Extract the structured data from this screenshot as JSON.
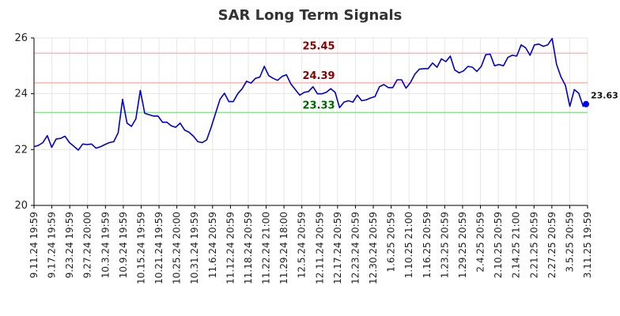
{
  "chart_data": {
    "type": "line",
    "title": "SAR Long Term Signals",
    "xlabel": "",
    "ylabel": "",
    "ylim": [
      20,
      26
    ],
    "yticks": [
      20,
      22,
      24,
      26
    ],
    "grid": true,
    "x_tick_labels": [
      "9.11.24 19:59",
      "9.17.24 19:59",
      "9.23.24 19:59",
      "9.27.24 20:00",
      "10.3.24 19:59",
      "10.9.24 19:59",
      "10.15.24 19:59",
      "10.21.24 19:59",
      "10.25.24 20:00",
      "10.31.24 19:59",
      "11.6.24 20:59",
      "11.12.24 20:59",
      "11.18.24 20:59",
      "11.22.24 21:00",
      "11.29.24 18:00",
      "12.5.24 20:59",
      "12.11.24 20:59",
      "12.17.24 20:59",
      "12.23.24 20:59",
      "12.30.24 20:59",
      "1.6.25 20:59",
      "1.10.25 21:00",
      "1.16.25 20:59",
      "1.23.25 20:59",
      "1.29.25 20:59",
      "2.4.25 20:59",
      "2.10.25 20:59",
      "2.14.25 21:00",
      "2.21.25 20:59",
      "2.27.25 20:59",
      "3.5.25 20:59",
      "3.11.25 19:59"
    ],
    "series": [
      {
        "name": "",
        "color": "#0000cc",
        "values": [
          22.1,
          22.15,
          22.25,
          22.5,
          22.08,
          22.38,
          22.4,
          22.48,
          22.25,
          22.12,
          21.98,
          22.2,
          22.18,
          22.2,
          22.05,
          22.1,
          22.18,
          22.25,
          22.28,
          22.6,
          23.8,
          22.95,
          22.83,
          23.1,
          24.12,
          23.3,
          23.25,
          23.2,
          23.2,
          22.98,
          22.98,
          22.85,
          22.8,
          22.95,
          22.7,
          22.62,
          22.48,
          22.28,
          22.25,
          22.35,
          22.8,
          23.3,
          23.8,
          24.02,
          23.72,
          23.72,
          24.0,
          24.18,
          24.45,
          24.38,
          24.55,
          24.6,
          24.98,
          24.65,
          24.55,
          24.48,
          24.62,
          24.68,
          24.35,
          24.15,
          23.95,
          24.05,
          24.08,
          24.25,
          24.0,
          24.0,
          24.05,
          24.18,
          24.05,
          23.5,
          23.7,
          23.75,
          23.7,
          23.95,
          23.75,
          23.78,
          23.85,
          23.9,
          24.25,
          24.33,
          24.22,
          24.22,
          24.5,
          24.5,
          24.2,
          24.4,
          24.7,
          24.88,
          24.9,
          24.9,
          25.1,
          24.95,
          25.25,
          25.15,
          25.35,
          24.85,
          24.75,
          24.82,
          24.98,
          24.95,
          24.8,
          24.98,
          25.4,
          25.42,
          25.0,
          25.05,
          25.0,
          25.3,
          25.38,
          25.35,
          25.75,
          25.65,
          25.38,
          25.75,
          25.78,
          25.7,
          25.75,
          25.98,
          25.05,
          24.6,
          24.3,
          23.55,
          24.15,
          24.02,
          23.55,
          23.63
        ]
      }
    ],
    "reference_lines": [
      {
        "value": 25.45,
        "label": "25.45",
        "line_color": "#ffb3b3",
        "label_color": "#8b0000"
      },
      {
        "value": 24.39,
        "label": "24.39",
        "line_color": "#ffb3b3",
        "label_color": "#8b0000"
      },
      {
        "value": 23.33,
        "label": "23.33",
        "line_color": "#90e090",
        "label_color": "#006400"
      }
    ],
    "last_point": {
      "value": 23.63,
      "label": "23.63",
      "color": "#0000ff"
    }
  }
}
